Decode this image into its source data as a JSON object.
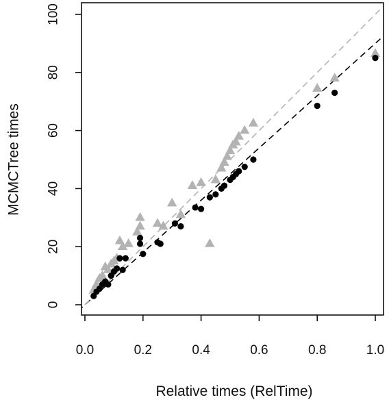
{
  "chart_data": {
    "type": "scatter",
    "xlabel": "Relative times (RelTime)",
    "ylabel": "MCMCTree times",
    "xlim": [
      0,
      1.0
    ],
    "ylim": [
      0,
      100
    ],
    "x_ticks": [
      {
        "value": 0.0,
        "label": "0.0"
      },
      {
        "value": 0.2,
        "label": "0.2"
      },
      {
        "value": 0.4,
        "label": "0.4"
      },
      {
        "value": 0.6,
        "label": "0.6"
      },
      {
        "value": 0.8,
        "label": "0.8"
      },
      {
        "value": 1.0,
        "label": "1.0"
      }
    ],
    "y_ticks": [
      {
        "value": 0,
        "label": "0"
      },
      {
        "value": 20,
        "label": "20"
      },
      {
        "value": 40,
        "label": "40"
      },
      {
        "value": 60,
        "label": "60"
      },
      {
        "value": 80,
        "label": "80"
      },
      {
        "value": 100,
        "label": "100"
      }
    ],
    "grid": false,
    "series": [
      {
        "marker": "circle",
        "color": "#000000",
        "points": [
          [
            0.03,
            3
          ],
          [
            0.04,
            4.5
          ],
          [
            0.05,
            5.5
          ],
          [
            0.06,
            7
          ],
          [
            0.07,
            8
          ],
          [
            0.08,
            7
          ],
          [
            0.09,
            10
          ],
          [
            0.1,
            11.5
          ],
          [
            0.11,
            12.5
          ],
          [
            0.12,
            16
          ],
          [
            0.13,
            12
          ],
          [
            0.14,
            16
          ],
          [
            0.19,
            23
          ],
          [
            0.19,
            21
          ],
          [
            0.2,
            17.5
          ],
          [
            0.25,
            21.5
          ],
          [
            0.26,
            21
          ],
          [
            0.31,
            28
          ],
          [
            0.33,
            27
          ],
          [
            0.38,
            33.5
          ],
          [
            0.4,
            33
          ],
          [
            0.43,
            37
          ],
          [
            0.45,
            38
          ],
          [
            0.47,
            40
          ],
          [
            0.48,
            41
          ],
          [
            0.5,
            43
          ],
          [
            0.51,
            44
          ],
          [
            0.52,
            45
          ],
          [
            0.53,
            46
          ],
          [
            0.55,
            47.5
          ],
          [
            0.58,
            50
          ],
          [
            0.8,
            68.5
          ],
          [
            0.86,
            73
          ],
          [
            1.0,
            85
          ]
        ]
      },
      {
        "marker": "triangle",
        "color": "#b3b3b3",
        "points": [
          [
            0.03,
            5
          ],
          [
            0.04,
            7
          ],
          [
            0.05,
            9
          ],
          [
            0.06,
            10
          ],
          [
            0.07,
            13
          ],
          [
            0.08,
            12
          ],
          [
            0.09,
            14
          ],
          [
            0.1,
            15
          ],
          [
            0.11,
            16
          ],
          [
            0.12,
            22
          ],
          [
            0.13,
            20
          ],
          [
            0.15,
            21
          ],
          [
            0.18,
            25
          ],
          [
            0.19,
            27
          ],
          [
            0.19,
            30
          ],
          [
            0.25,
            28
          ],
          [
            0.27,
            27
          ],
          [
            0.3,
            35
          ],
          [
            0.33,
            31
          ],
          [
            0.37,
            41
          ],
          [
            0.4,
            42
          ],
          [
            0.43,
            21
          ],
          [
            0.45,
            43
          ],
          [
            0.47,
            47
          ],
          [
            0.48,
            49
          ],
          [
            0.49,
            51
          ],
          [
            0.5,
            53
          ],
          [
            0.51,
            55
          ],
          [
            0.52,
            56
          ],
          [
            0.53,
            58
          ],
          [
            0.55,
            60
          ],
          [
            0.58,
            62.5
          ],
          [
            0.8,
            74.5
          ],
          [
            0.86,
            78
          ],
          [
            1.0,
            86.5
          ]
        ]
      }
    ],
    "reference_lines": [
      {
        "style": "dashed",
        "color": "#000000",
        "intercept": 0,
        "slope": 90
      },
      {
        "style": "dashed",
        "color": "#b3b3b3",
        "intercept": 0,
        "slope": 100
      }
    ]
  }
}
